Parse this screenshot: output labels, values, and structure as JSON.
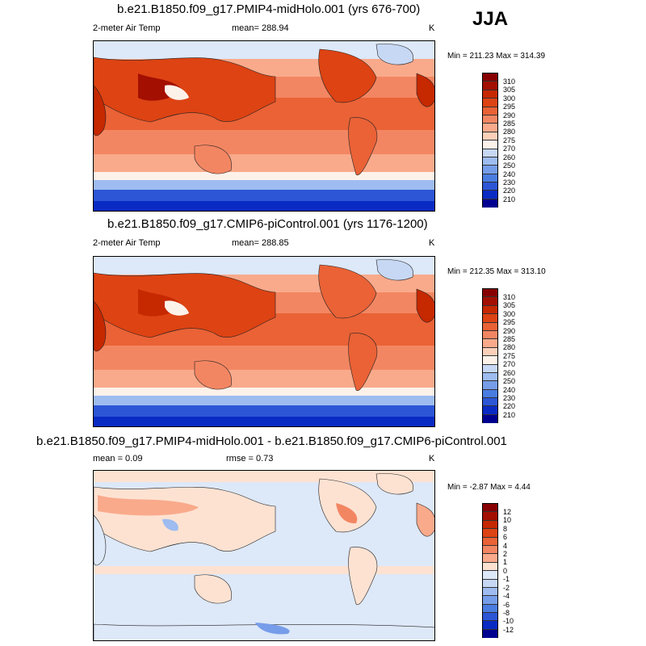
{
  "season": "JJA",
  "panels": [
    {
      "title": "b.e21.B1850.f09_g17.PMIP4-midHolo.001 (yrs 676-700)",
      "variable": "2-meter Air Temp",
      "stat_left": "mean= 288.94",
      "stat_mid": "",
      "units": "K",
      "minmax": "Min = 211.23 Max = 314.39",
      "colorbar_labels": [
        "310",
        "305",
        "300",
        "295",
        "290",
        "285",
        "280",
        "275",
        "270",
        "260",
        "250",
        "240",
        "230",
        "220",
        "210"
      ],
      "colorbar_colors": [
        "#870000",
        "#a30f00",
        "#c62800",
        "#dd4313",
        "#ea6236",
        "#f38662",
        "#f9aa8b",
        "#fcd0b9",
        "#fdf2ea",
        "#c7d8f4",
        "#9ebcf0",
        "#769de9",
        "#4a7de2",
        "#2c56d6",
        "#0a2ac4",
        "#000090"
      ]
    },
    {
      "title": "b.e21.B1850.f09_g17.CMIP6-piControl.001 (yrs 1176-1200)",
      "variable": "2-meter Air Temp",
      "stat_left": "mean= 288.85",
      "stat_mid": "",
      "units": "K",
      "minmax": "Min = 212.35 Max = 313.10",
      "colorbar_labels": [
        "310",
        "305",
        "300",
        "295",
        "290",
        "285",
        "280",
        "275",
        "270",
        "260",
        "250",
        "240",
        "230",
        "220",
        "210"
      ],
      "colorbar_colors": [
        "#870000",
        "#a30f00",
        "#c62800",
        "#dd4313",
        "#ea6236",
        "#f38662",
        "#f9aa8b",
        "#fcd0b9",
        "#fdf2ea",
        "#c7d8f4",
        "#9ebcf0",
        "#769de9",
        "#4a7de2",
        "#2c56d6",
        "#0a2ac4",
        "#000090"
      ]
    },
    {
      "title": "b.e21.B1850.f09_g17.PMIP4-midHolo.001 - b.e21.B1850.f09_g17.CMIP6-piControl.001",
      "variable": "",
      "stat_left": "mean =   0.09",
      "stat_mid": "rmse =   0.73",
      "units": "K",
      "minmax": "Min =  -2.87 Max =   4.44",
      "colorbar_labels": [
        "12",
        "10",
        "8",
        "6",
        "4",
        "2",
        "1",
        "0",
        "-1",
        "-2",
        "-4",
        "-6",
        "-8",
        "-10",
        "-12"
      ],
      "colorbar_colors": [
        "#870000",
        "#a30f00",
        "#c62800",
        "#dd4313",
        "#ea6236",
        "#f38662",
        "#f9aa8b",
        "#fde2d2",
        "#dde8f8",
        "#c7d8f4",
        "#9ebcf0",
        "#769de9",
        "#4a7de2",
        "#2c56d6",
        "#0a2ac4",
        "#000090"
      ]
    }
  ],
  "chart_data": [
    {
      "type": "heatmap",
      "title": "b.e21.B1850.f09_g17.PMIP4-midHolo.001 (yrs 676-700)",
      "variable": "2-meter Air Temp",
      "units": "K",
      "season": "JJA",
      "mean": 288.94,
      "min": 211.23,
      "max": 314.39,
      "contour_levels": [
        210,
        220,
        230,
        240,
        250,
        260,
        270,
        275,
        280,
        285,
        290,
        295,
        300,
        305,
        310
      ],
      "projection": "cylindrical equidistant, centered on Pacific",
      "colormap": "blue-white-red"
    },
    {
      "type": "heatmap",
      "title": "b.e21.B1850.f09_g17.CMIP6-piControl.001 (yrs 1176-1200)",
      "variable": "2-meter Air Temp",
      "units": "K",
      "season": "JJA",
      "mean": 288.85,
      "min": 212.35,
      "max": 313.1,
      "contour_levels": [
        210,
        220,
        230,
        240,
        250,
        260,
        270,
        275,
        280,
        285,
        290,
        295,
        300,
        305,
        310
      ],
      "projection": "cylindrical equidistant, centered on Pacific",
      "colormap": "blue-white-red"
    },
    {
      "type": "heatmap",
      "title": "b.e21.B1850.f09_g17.PMIP4-midHolo.001 - b.e21.B1850.f09_g17.CMIP6-piControl.001",
      "units": "K",
      "season": "JJA",
      "mean": 0.09,
      "rmse": 0.73,
      "min": -2.87,
      "max": 4.44,
      "contour_levels": [
        -12,
        -10,
        -8,
        -6,
        -4,
        -2,
        -1,
        0,
        1,
        2,
        4,
        6,
        8,
        10,
        12
      ],
      "projection": "cylindrical equidistant, centered on Pacific",
      "colormap": "blue-white-red"
    }
  ]
}
